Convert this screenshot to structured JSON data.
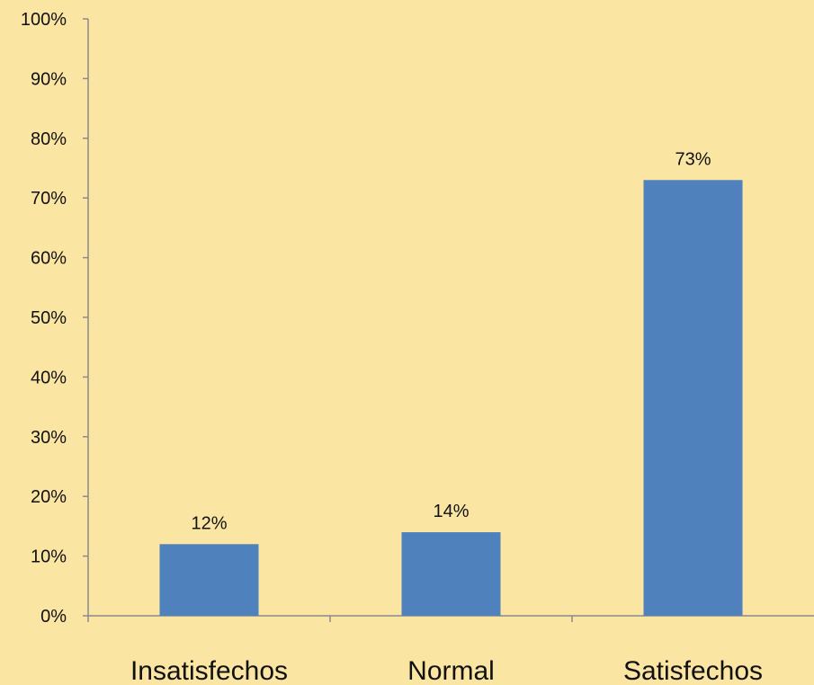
{
  "colors": {
    "background": "#fbe5a3",
    "bar": "#4f81bd",
    "axis": "#8a8a8a"
  },
  "chart_data": {
    "type": "bar",
    "title": "",
    "xlabel": "",
    "ylabel": "",
    "categories": [
      "Insatisfechos",
      "Normal",
      "Satisfechos"
    ],
    "values": [
      12,
      14,
      73
    ],
    "data_labels": [
      "12%",
      "14%",
      "73%"
    ],
    "ylim": [
      0,
      100
    ],
    "y_ticks": [
      0,
      10,
      20,
      30,
      40,
      50,
      60,
      70,
      80,
      90,
      100
    ],
    "y_tick_labels": [
      "0%",
      "10%",
      "20%",
      "30%",
      "40%",
      "50%",
      "60%",
      "70%",
      "80%",
      "90%",
      "100%"
    ],
    "grid": false,
    "legend": "none"
  }
}
